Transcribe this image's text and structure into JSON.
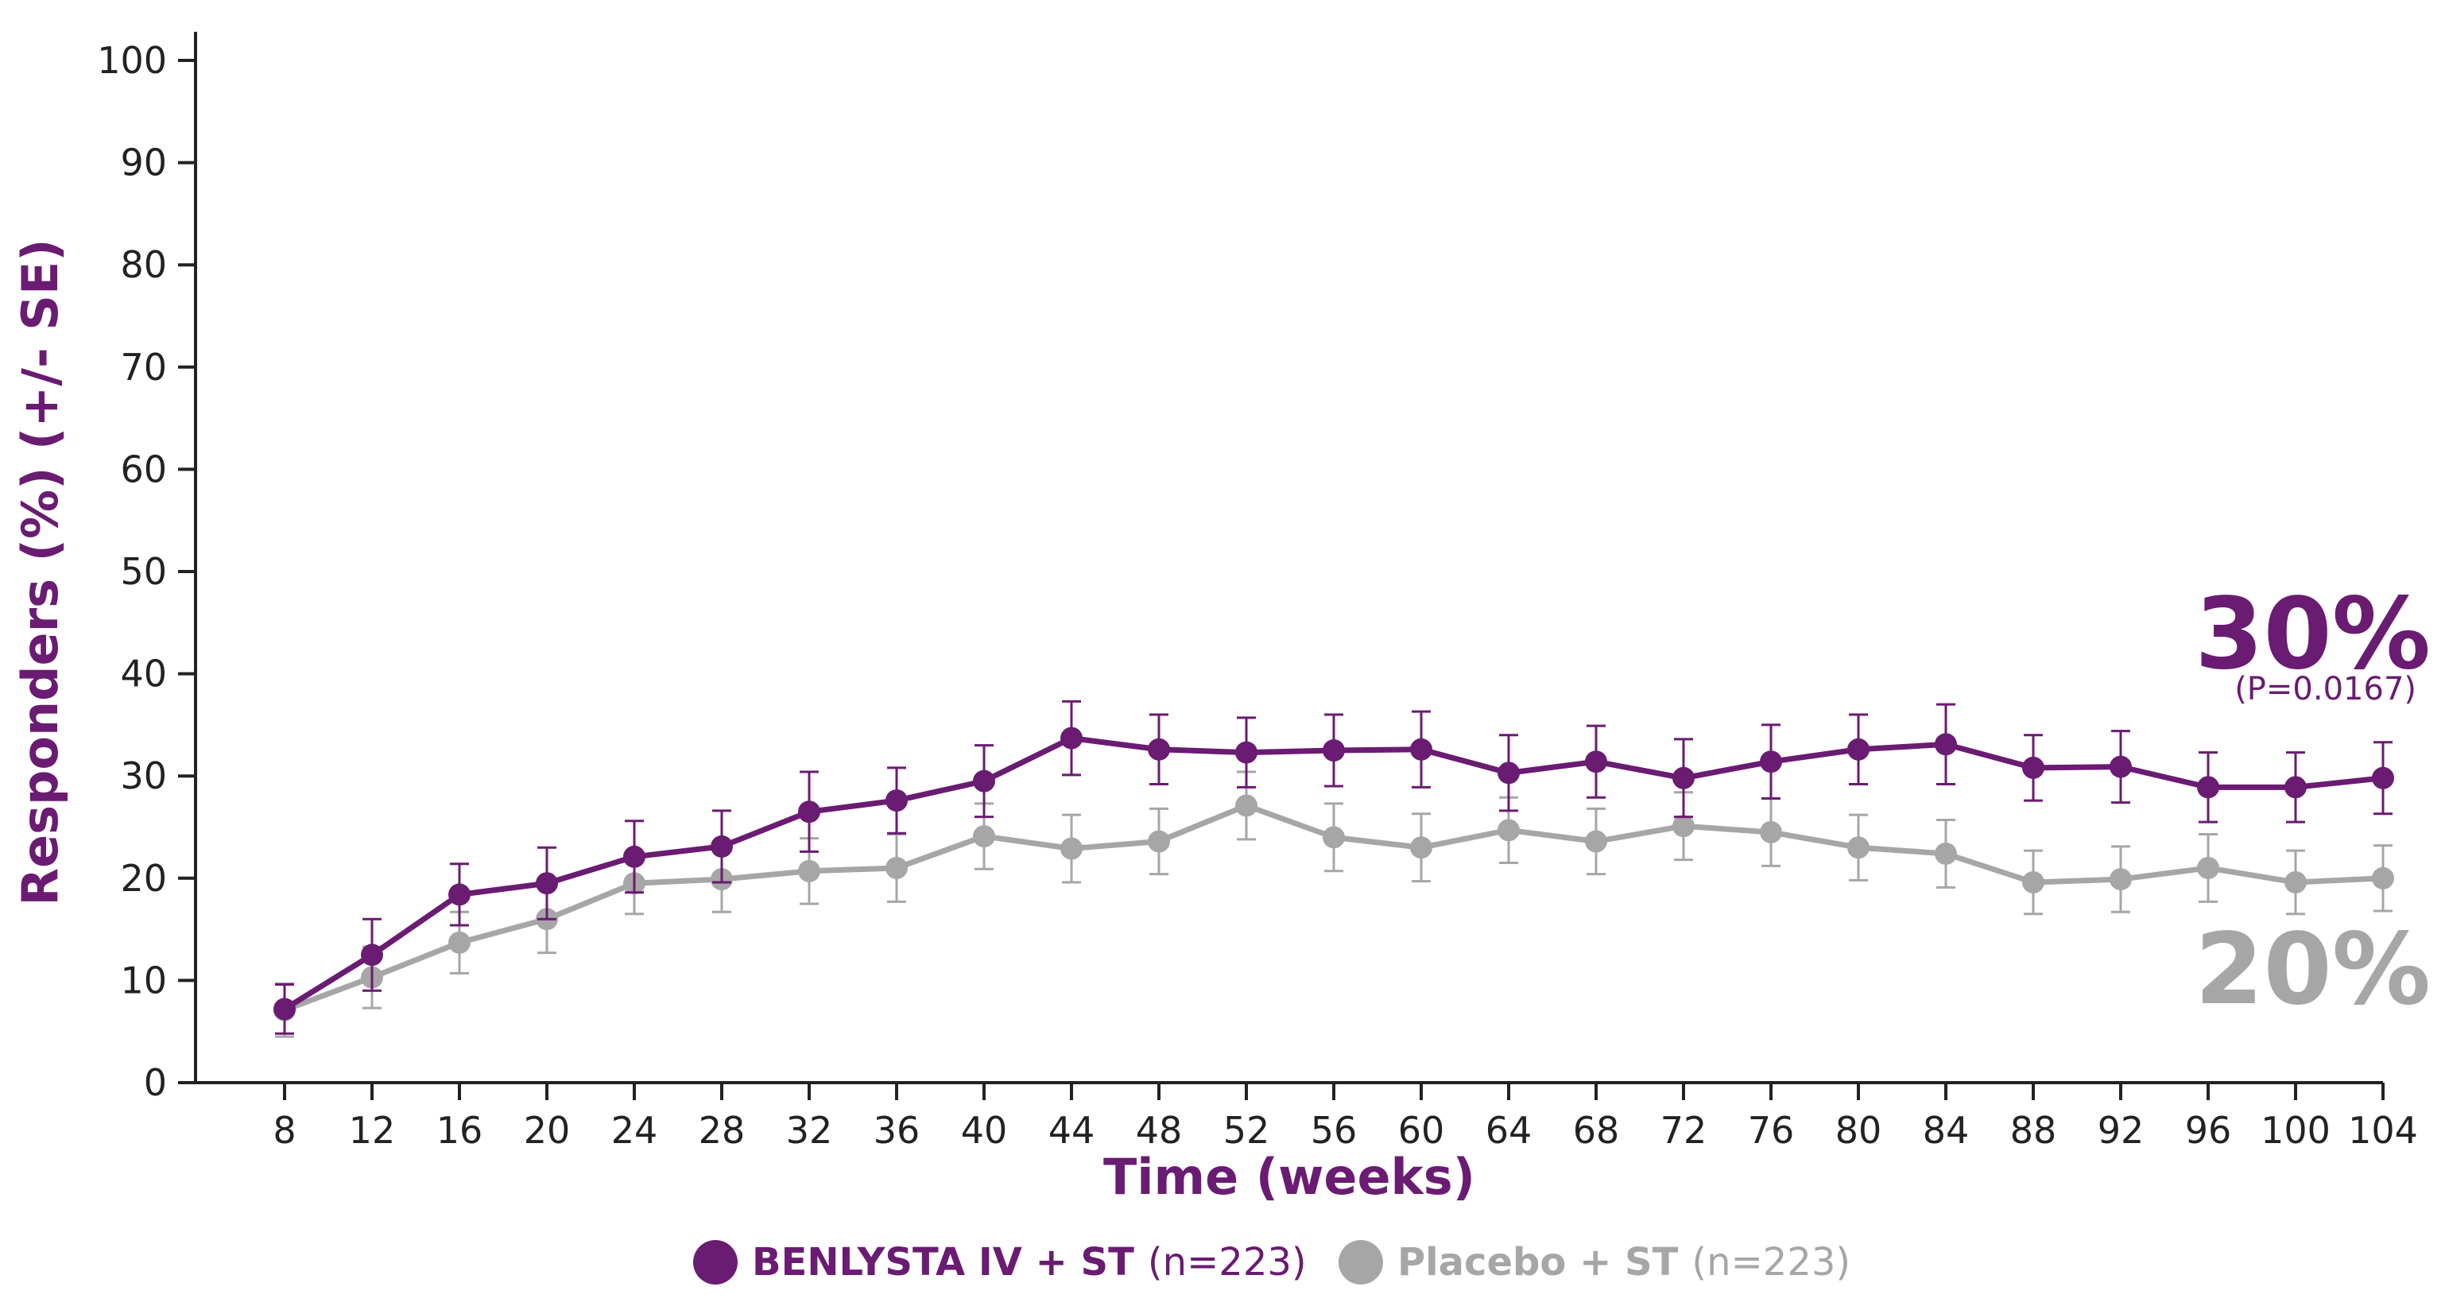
{
  "colors": {
    "benlysta": "#6a1b72",
    "placebo": "#a6a6a6",
    "axis": "#222222"
  },
  "chart_data": {
    "type": "line",
    "xlabel": "Time (weeks)",
    "ylabel": "Responders (%) (+/- SE)",
    "ylim": [
      0,
      100
    ],
    "yticks": [
      0,
      10,
      20,
      30,
      40,
      50,
      60,
      70,
      80,
      90,
      100
    ],
    "x": [
      8,
      12,
      16,
      20,
      24,
      28,
      32,
      36,
      40,
      44,
      48,
      52,
      56,
      60,
      64,
      68,
      72,
      76,
      80,
      84,
      88,
      92,
      96,
      100,
      104
    ],
    "series": [
      {
        "name": "BENLYSTA IV + ST",
        "n_label": "(n=223)",
        "color": "#6a1b72",
        "values": [
          7.2,
          12.5,
          18.4,
          19.5,
          22.1,
          23.1,
          26.5,
          27.6,
          29.5,
          33.7,
          32.6,
          32.3,
          32.5,
          32.6,
          30.3,
          31.4,
          29.8,
          31.4,
          32.6,
          33.1,
          30.8,
          30.9,
          28.9,
          28.9,
          29.8
        ],
        "se": [
          2.4,
          3.5,
          3.0,
          3.5,
          3.5,
          3.5,
          3.9,
          3.2,
          3.5,
          3.6,
          3.4,
          3.4,
          3.5,
          3.7,
          3.7,
          3.5,
          3.8,
          3.6,
          3.4,
          3.9,
          3.2,
          3.5,
          3.4,
          3.4,
          3.5
        ]
      },
      {
        "name": "Placebo + ST",
        "n_label": "(n=223)",
        "color": "#a6a6a6",
        "values": [
          7.1,
          10.3,
          13.7,
          16.0,
          19.5,
          19.9,
          20.7,
          21.0,
          24.1,
          22.9,
          23.6,
          27.1,
          24.0,
          23.0,
          24.7,
          23.6,
          25.1,
          24.5,
          23.0,
          22.4,
          19.6,
          19.9,
          21.0,
          19.6,
          20.0
        ],
        "se": [
          2.6,
          3.0,
          3.0,
          3.3,
          3.0,
          3.2,
          3.2,
          3.3,
          3.2,
          3.3,
          3.2,
          3.3,
          3.3,
          3.3,
          3.2,
          3.2,
          3.3,
          3.3,
          3.2,
          3.3,
          3.1,
          3.2,
          3.3,
          3.1,
          3.2
        ]
      }
    ],
    "annotations": [
      {
        "text": "30%",
        "sub": "(P=0.0167)",
        "series": "BENLYSTA IV + ST"
      },
      {
        "text": "20%",
        "series": "Placebo + ST"
      }
    ],
    "legend_position": "bottom-center",
    "grid": false
  }
}
